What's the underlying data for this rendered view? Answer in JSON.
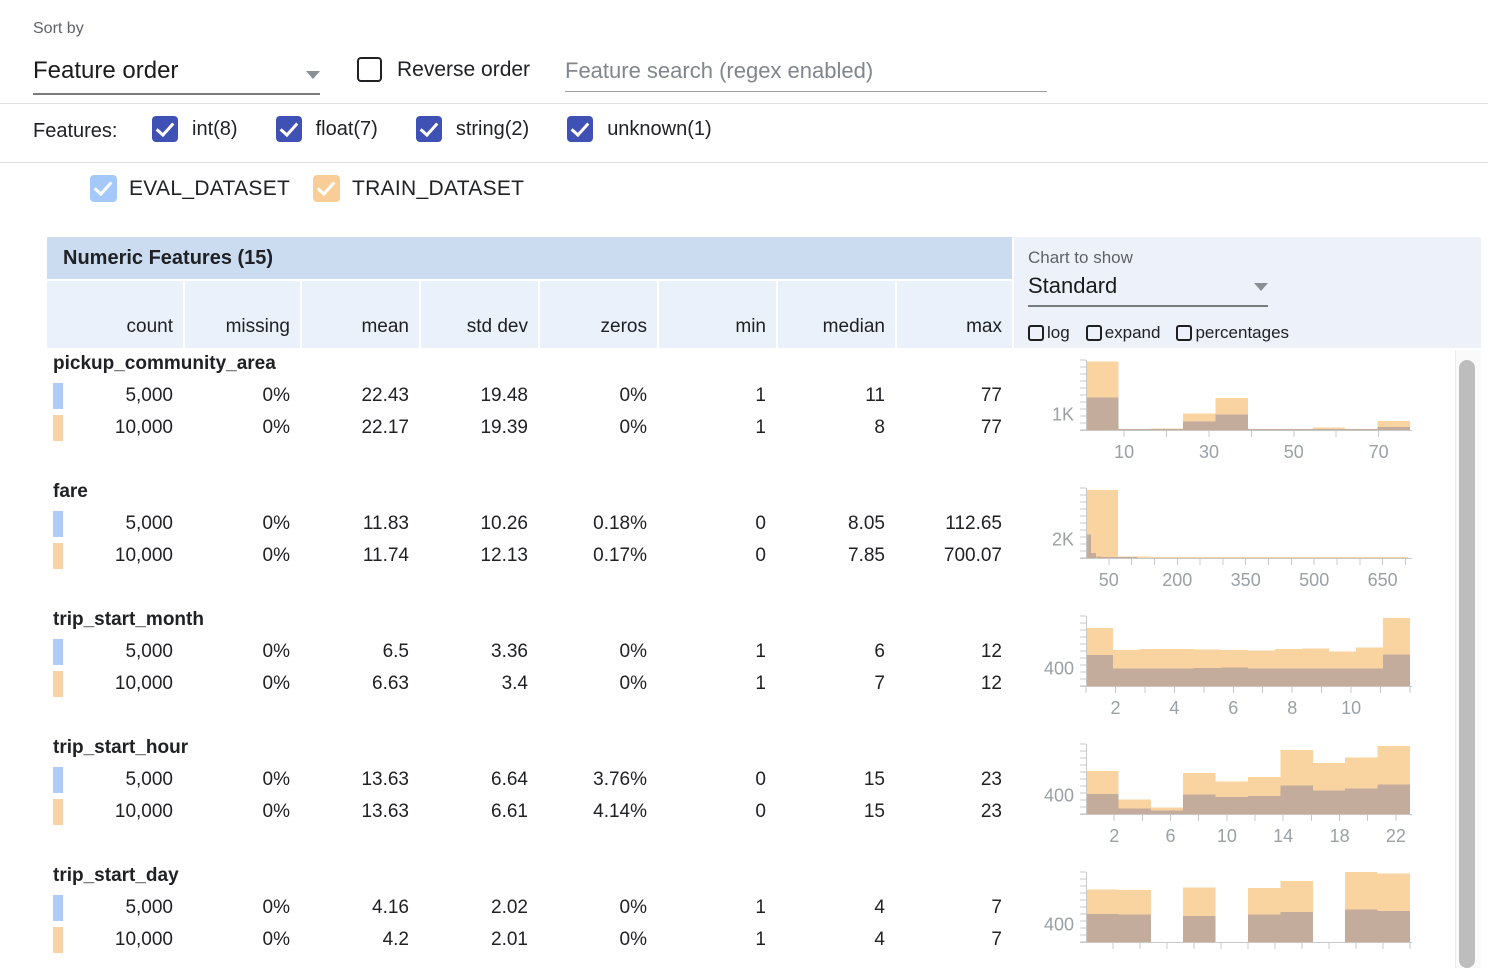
{
  "toolbar": {
    "sort_by_label": "Sort by",
    "sort_value": "Feature order",
    "reverse_label": "Reverse order",
    "search_placeholder": "Feature search (regex enabled)"
  },
  "features_bar": {
    "label": "Features:",
    "checkbox_color": "#3f51b5",
    "types": [
      {
        "label": "int(8)",
        "checked": true
      },
      {
        "label": "float(7)",
        "checked": true
      },
      {
        "label": "string(2)",
        "checked": true
      },
      {
        "label": "unknown(1)",
        "checked": true
      }
    ]
  },
  "datasets": [
    {
      "name": "EVAL_DATASET",
      "checked": true,
      "checkbox_color": "#a5c8fa",
      "marker_color": "#aecbfa",
      "left": 90
    },
    {
      "name": "TRAIN_DATASET",
      "checked": true,
      "checkbox_color": "#f9cd98",
      "marker_color": "#f8d2a2",
      "left": 313
    }
  ],
  "table": {
    "title": "Numeric Features (15)",
    "columns": [
      "count",
      "missing",
      "mean",
      "std dev",
      "zeros",
      "min",
      "median",
      "max"
    ]
  },
  "chart_controls": {
    "label": "Chart to show",
    "value": "Standard",
    "checkboxes": [
      "log",
      "expand",
      "percentages"
    ]
  },
  "features": [
    {
      "name": "pickup_community_area",
      "rows": [
        {
          "dataset": "EVAL_DATASET",
          "marker_color": "#aecbfa",
          "values": [
            "5,000",
            "0%",
            "22.43",
            "19.48",
            "0%",
            "1",
            "11",
            "77"
          ]
        },
        {
          "dataset": "TRAIN_DATASET",
          "marker_color": "#f8d2a2",
          "values": [
            "10,000",
            "0%",
            "22.17",
            "19.39",
            "0%",
            "1",
            "8",
            "77"
          ]
        }
      ]
    },
    {
      "name": "fare",
      "rows": [
        {
          "dataset": "EVAL_DATASET",
          "marker_color": "#aecbfa",
          "values": [
            "5,000",
            "0%",
            "11.83",
            "10.26",
            "0.18%",
            "0",
            "8.05",
            "112.65"
          ]
        },
        {
          "dataset": "TRAIN_DATASET",
          "marker_color": "#f8d2a2",
          "values": [
            "10,000",
            "0%",
            "11.74",
            "12.13",
            "0.17%",
            "0",
            "7.85",
            "700.07"
          ]
        }
      ]
    },
    {
      "name": "trip_start_month",
      "rows": [
        {
          "dataset": "EVAL_DATASET",
          "marker_color": "#aecbfa",
          "values": [
            "5,000",
            "0%",
            "6.5",
            "3.36",
            "0%",
            "1",
            "6",
            "12"
          ]
        },
        {
          "dataset": "TRAIN_DATASET",
          "marker_color": "#f8d2a2",
          "values": [
            "10,000",
            "0%",
            "6.63",
            "3.4",
            "0%",
            "1",
            "7",
            "12"
          ]
        }
      ]
    },
    {
      "name": "trip_start_hour",
      "rows": [
        {
          "dataset": "EVAL_DATASET",
          "marker_color": "#aecbfa",
          "values": [
            "5,000",
            "0%",
            "13.63",
            "6.64",
            "3.76%",
            "0",
            "15",
            "23"
          ]
        },
        {
          "dataset": "TRAIN_DATASET",
          "marker_color": "#f8d2a2",
          "values": [
            "10,000",
            "0%",
            "13.63",
            "6.61",
            "4.14%",
            "0",
            "15",
            "23"
          ]
        }
      ]
    },
    {
      "name": "trip_start_day",
      "rows": [
        {
          "dataset": "EVAL_DATASET",
          "marker_color": "#aecbfa",
          "values": [
            "5,000",
            "0%",
            "4.16",
            "2.02",
            "0%",
            "1",
            "4",
            "7"
          ]
        },
        {
          "dataset": "TRAIN_DATASET",
          "marker_color": "#f8d2a2",
          "values": [
            "10,000",
            "0%",
            "4.2",
            "2.01",
            "0%",
            "1",
            "4",
            "7"
          ]
        }
      ]
    }
  ],
  "chart_data": [
    {
      "feature": "pickup_community_area",
      "type": "histogram",
      "x_domain": [
        1,
        77.4
      ],
      "y_max": 4500,
      "y_axis_label": {
        "text": "1K",
        "value": 1000
      },
      "x_minor_ticks": [
        10,
        20,
        30,
        40,
        50,
        60,
        70
      ],
      "x_labels": [
        10,
        30,
        50,
        70
      ],
      "series": [
        {
          "name": "TRAIN_DATASET",
          "color": "#f9d4a0",
          "bins": [
            [
              1,
              8.64,
              4400
            ],
            [
              8.64,
              16.28,
              60
            ],
            [
              16.28,
              23.92,
              90
            ],
            [
              23.92,
              31.56,
              1070
            ],
            [
              31.56,
              39.2,
              2070
            ],
            [
              39.2,
              46.84,
              40
            ],
            [
              46.84,
              54.48,
              30
            ],
            [
              54.48,
              62.12,
              150
            ],
            [
              62.12,
              69.76,
              20
            ],
            [
              69.76,
              77.4,
              580
            ]
          ]
        },
        {
          "name": "EVAL_DATASET",
          "color": "#c3ac9c",
          "bins": [
            [
              1,
              8.64,
              2100
            ],
            [
              8.64,
              16.28,
              25
            ],
            [
              16.28,
              23.92,
              40
            ],
            [
              23.92,
              31.56,
              550
            ],
            [
              31.56,
              39.2,
              1000
            ],
            [
              39.2,
              46.84,
              15
            ],
            [
              46.84,
              54.48,
              10
            ],
            [
              54.48,
              62.12,
              60
            ],
            [
              62.12,
              69.76,
              8
            ],
            [
              69.76,
              77.4,
              200
            ]
          ]
        }
      ]
    },
    {
      "feature": "fare",
      "type": "histogram",
      "x_domain": [
        0,
        710
      ],
      "y_max": 7500,
      "y_axis_label": {
        "text": "2K",
        "value": 2000
      },
      "x_minor_ticks": [
        50,
        100,
        150,
        200,
        250,
        300,
        350,
        400,
        450,
        500,
        550,
        600,
        650,
        700
      ],
      "x_labels": [
        50,
        200,
        350,
        500,
        650
      ],
      "series": [
        {
          "name": "TRAIN_DATASET",
          "color": "#f9d4a0",
          "bins": [
            [
              0,
              70.6,
              7300
            ],
            [
              70.6,
              141.2,
              150
            ],
            [
              141.2,
              211.8,
              40
            ],
            [
              211.8,
              282.4,
              15
            ],
            [
              282.4,
              353,
              8
            ],
            [
              353,
              423.6,
              5
            ],
            [
              423.6,
              494.2,
              3
            ],
            [
              494.2,
              564.8,
              2
            ],
            [
              564.8,
              635.4,
              1
            ],
            [
              635.4,
              706,
              1
            ]
          ]
        },
        {
          "name": "EVAL_DATASET",
          "color": "#c3ac9c",
          "bins": [
            [
              0,
              11.27,
              2500
            ],
            [
              11.27,
              22.54,
              550
            ],
            [
              22.54,
              33.81,
              150
            ],
            [
              33.81,
              45.08,
              60
            ],
            [
              45.08,
              56.35,
              30
            ],
            [
              56.35,
              67.62,
              15
            ],
            [
              67.62,
              78.89,
              8
            ],
            [
              78.89,
              90.16,
              5
            ],
            [
              90.16,
              101.43,
              3
            ],
            [
              101.43,
              112.7,
              2
            ]
          ]
        }
      ]
    },
    {
      "feature": "trip_start_month",
      "type": "histogram",
      "x_domain": [
        1,
        12
      ],
      "y_max": 1600,
      "y_axis_label": {
        "text": "400",
        "value": 400
      },
      "x_minor_ticks": [
        1,
        2,
        3,
        4,
        5,
        6,
        7,
        8,
        9,
        10,
        11,
        12
      ],
      "x_labels": [
        2,
        4,
        6,
        8,
        10
      ],
      "series": [
        {
          "name": "TRAIN_DATASET",
          "color": "#f9d4a0",
          "bins": [
            [
              1,
              1.92,
              1330
            ],
            [
              1.92,
              2.83,
              820
            ],
            [
              2.83,
              3.75,
              850
            ],
            [
              3.75,
              4.67,
              845
            ],
            [
              4.67,
              5.58,
              835
            ],
            [
              5.58,
              6.5,
              825
            ],
            [
              6.5,
              7.42,
              815
            ],
            [
              7.42,
              8.33,
              845
            ],
            [
              8.33,
              9.25,
              855
            ],
            [
              9.25,
              10.17,
              785
            ],
            [
              10.17,
              11.08,
              885
            ],
            [
              11.08,
              12,
              1550
            ]
          ]
        },
        {
          "name": "EVAL_DATASET",
          "color": "#c3ac9c",
          "bins": [
            [
              1,
              1.92,
              710
            ],
            [
              1.92,
              2.83,
              400
            ],
            [
              2.83,
              3.75,
              405
            ],
            [
              3.75,
              4.67,
              400
            ],
            [
              4.67,
              5.58,
              415
            ],
            [
              5.58,
              6.5,
              420
            ],
            [
              6.5,
              7.42,
              400
            ],
            [
              7.42,
              8.33,
              400
            ],
            [
              8.33,
              9.25,
              405
            ],
            [
              9.25,
              10.17,
              400
            ],
            [
              10.17,
              11.08,
              400
            ],
            [
              11.08,
              12,
              725
            ]
          ]
        }
      ]
    },
    {
      "feature": "trip_start_hour",
      "type": "histogram",
      "x_domain": [
        0,
        23
      ],
      "y_max": 1500,
      "y_axis_label": {
        "text": "400",
        "value": 400
      },
      "x_minor_ticks": [
        2,
        4,
        6,
        8,
        10,
        12,
        14,
        16,
        18,
        20,
        22
      ],
      "x_labels": [
        2,
        6,
        10,
        14,
        18,
        22
      ],
      "series": [
        {
          "name": "TRAIN_DATASET",
          "color": "#f9d4a0",
          "bins": [
            [
              0,
              2.3,
              920
            ],
            [
              2.3,
              4.6,
              310
            ],
            [
              4.6,
              6.9,
              135
            ],
            [
              6.9,
              9.2,
              875
            ],
            [
              9.2,
              11.5,
              700
            ],
            [
              11.5,
              13.8,
              790
            ],
            [
              13.8,
              16.1,
              1370
            ],
            [
              16.1,
              18.4,
              1090
            ],
            [
              18.4,
              20.7,
              1210
            ],
            [
              20.7,
              23,
              1460
            ]
          ]
        },
        {
          "name": "EVAL_DATASET",
          "color": "#c3ac9c",
          "bins": [
            [
              0,
              2.3,
              430
            ],
            [
              2.3,
              4.6,
              120
            ],
            [
              4.6,
              6.9,
              80
            ],
            [
              6.9,
              9.2,
              420
            ],
            [
              9.2,
              11.5,
              360
            ],
            [
              11.5,
              13.8,
              390
            ],
            [
              13.8,
              16.1,
              610
            ],
            [
              16.1,
              18.4,
              500
            ],
            [
              18.4,
              20.7,
              550
            ],
            [
              20.7,
              23,
              630
            ]
          ]
        }
      ]
    },
    {
      "feature": "trip_start_day",
      "type": "histogram",
      "x_domain": [
        1,
        7
      ],
      "y_max": 1600,
      "y_axis_label": {
        "text": "400",
        "value": 400
      },
      "x_minor_ticks": [
        1.5,
        2,
        2.5,
        3,
        3.5,
        4,
        4.5,
        5,
        5.5,
        6,
        6.5,
        7
      ],
      "x_labels": [],
      "series": [
        {
          "name": "TRAIN_DATASET",
          "color": "#f9d4a0",
          "bins": [
            [
              1,
              1.6,
              1200
            ],
            [
              1.6,
              2.2,
              1190
            ],
            [
              2.2,
              2.8,
              0
            ],
            [
              2.8,
              3.4,
              1250
            ],
            [
              3.4,
              4,
              0
            ],
            [
              4,
              4.6,
              1240
            ],
            [
              4.6,
              5.2,
              1400
            ],
            [
              5.2,
              5.8,
              0
            ],
            [
              5.8,
              6.4,
              1600
            ],
            [
              6.4,
              7,
              1570
            ]
          ]
        },
        {
          "name": "EVAL_DATASET",
          "color": "#c3ac9c",
          "bins": [
            [
              1,
              1.6,
              640
            ],
            [
              1.6,
              2.2,
              630
            ],
            [
              2.2,
              2.8,
              0
            ],
            [
              2.8,
              3.4,
              600
            ],
            [
              3.4,
              4,
              0
            ],
            [
              4,
              4.6,
              630
            ],
            [
              4.6,
              5.2,
              690
            ],
            [
              5.2,
              5.8,
              0
            ],
            [
              5.8,
              6.4,
              740
            ],
            [
              6.4,
              7,
              710
            ]
          ]
        }
      ]
    }
  ]
}
